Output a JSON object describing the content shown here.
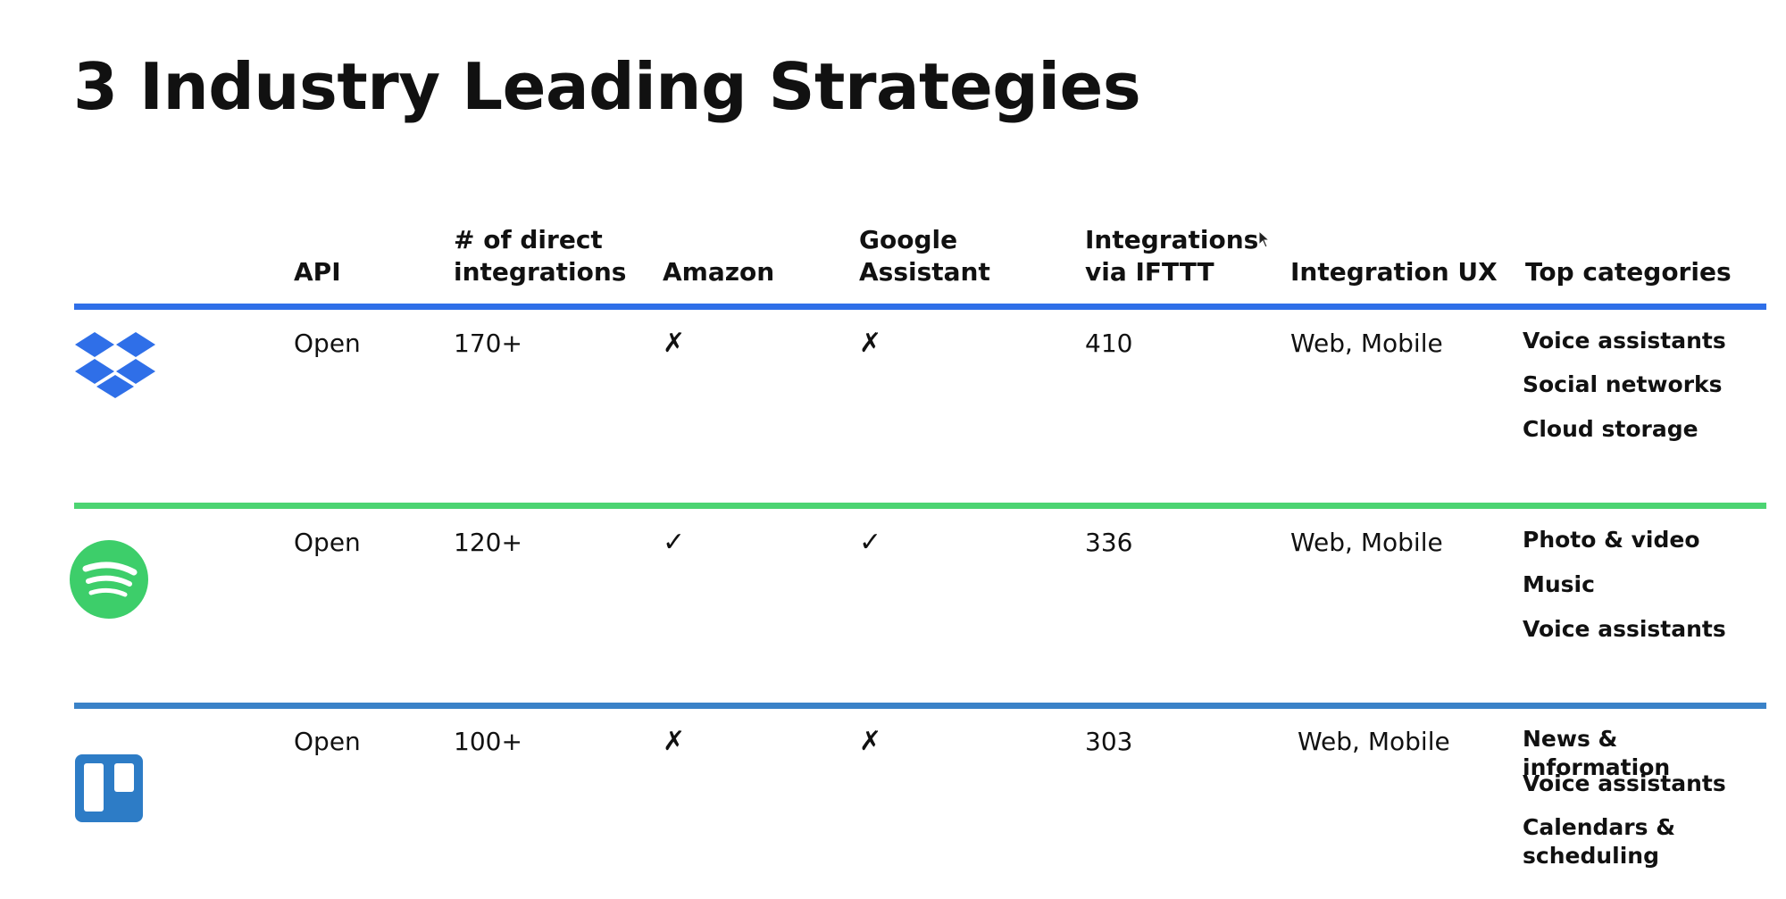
{
  "title": "3 Industry Leading Strategies",
  "columns": {
    "api": "API",
    "direct_line1": "# of direct",
    "direct_line2": "integrations",
    "amazon": "Amazon",
    "google_line1": "Google",
    "google_line2": "Assistant",
    "ifttt_line1": "Integrations",
    "ifttt_line2": "via IFTTT",
    "ux": "Integration UX",
    "categories": "Top categories"
  },
  "colors": {
    "dropbox": "#2f6fe8",
    "spotify": "#3dce6a",
    "trello": "#2d7cc6",
    "rule_dropbox": "#2f6fe8",
    "rule_spotify": "#4cd472",
    "rule_trello": "#3a82c8"
  },
  "rows": [
    {
      "logo_icon": "dropbox-logo-icon",
      "api": "Open",
      "direct": "170+",
      "amazon": "✗",
      "google": "✗",
      "ifttt": "410",
      "ux": "Web, Mobile",
      "categories": [
        "Voice assistants",
        "Social networks",
        "Cloud storage"
      ]
    },
    {
      "logo_icon": "spotify-logo-icon",
      "api": "Open",
      "direct": "120+",
      "amazon": "✓",
      "google": "✓",
      "ifttt": "336",
      "ux": "Web, Mobile",
      "categories": [
        "Photo & video",
        "Music",
        "Voice assistants"
      ]
    },
    {
      "logo_icon": "trello-logo-icon",
      "api": "Open",
      "direct": "100+",
      "amazon": "✗",
      "google": "✗",
      "ifttt": "303",
      "ux": "Web, Mobile",
      "categories": [
        "News & information",
        "Voice assistants",
        "Calendars &",
        "scheduling"
      ]
    }
  ]
}
